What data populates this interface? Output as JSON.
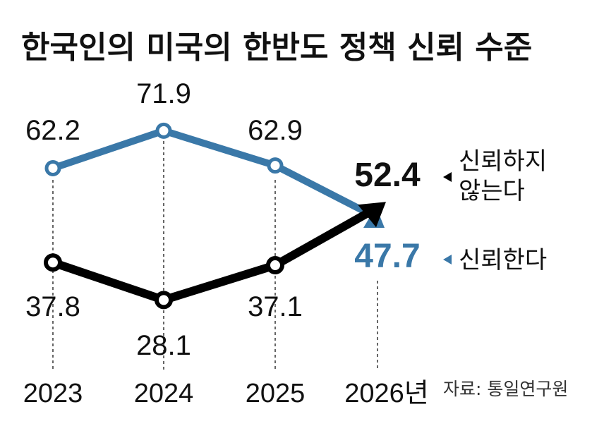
{
  "title": "한국인의 미국의 한반도 정책 신뢰 수준",
  "source": "자료: 통일연구원",
  "colors": {
    "trust": "#3a78a8",
    "distrust": "#000000"
  },
  "chart_data": {
    "type": "line",
    "categories": [
      "2023",
      "2024",
      "2025",
      "2026년"
    ],
    "series": [
      {
        "name": "신뢰한다",
        "values": [
          62.2,
          71.9,
          62.9,
          47.7
        ],
        "labels": [
          "62.2",
          "71.9",
          "62.9",
          "47.7"
        ]
      },
      {
        "name": "신뢰하지 않는다",
        "name_lines": [
          "신뢰하지",
          "않는다"
        ],
        "values": [
          37.8,
          28.1,
          37.1,
          52.4
        ],
        "labels": [
          "37.8",
          "28.1",
          "37.1",
          "52.4"
        ]
      }
    ]
  }
}
